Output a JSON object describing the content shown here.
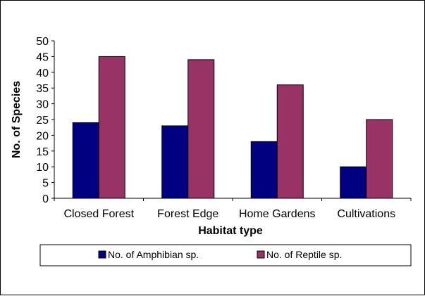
{
  "chart_data": {
    "type": "bar",
    "title": "",
    "xlabel": "Habitat type",
    "ylabel": "No. of Species",
    "categories": [
      "Closed Forest",
      "Forest Edge",
      "Home Gardens",
      "Cultivations"
    ],
    "series": [
      {
        "name": "No. of Amphibian sp.",
        "values": [
          24,
          23,
          18,
          10
        ],
        "color": "#000080"
      },
      {
        "name": "No. of Reptile sp.",
        "values": [
          45,
          44,
          36,
          25
        ],
        "color": "#993366"
      }
    ],
    "ylim": [
      0,
      50
    ],
    "yticks": [
      "0",
      "5",
      "10",
      "15",
      "20",
      "25",
      "30",
      "35",
      "40",
      "45",
      "50"
    ],
    "grid": false,
    "legend": "bottom"
  }
}
